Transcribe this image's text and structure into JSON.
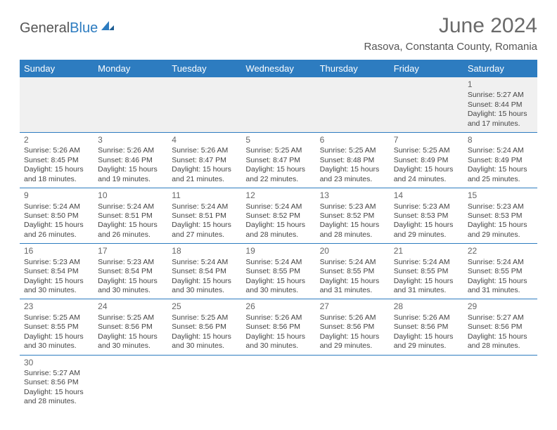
{
  "brand": {
    "general": "General",
    "blue": "Blue"
  },
  "title": "June 2024",
  "location": "Rasova, Constanta County, Romania",
  "header_bg": "#2d7cc0",
  "header_text": "#ffffff",
  "border_color": "#2d7cc0",
  "day_headers": [
    "Sunday",
    "Monday",
    "Tuesday",
    "Wednesday",
    "Thursday",
    "Friday",
    "Saturday"
  ],
  "weeks": [
    [
      null,
      null,
      null,
      null,
      null,
      null,
      {
        "n": "1",
        "sr": "Sunrise: 5:27 AM",
        "ss": "Sunset: 8:44 PM",
        "d1": "Daylight: 15 hours",
        "d2": "and 17 minutes."
      }
    ],
    [
      {
        "n": "2",
        "sr": "Sunrise: 5:26 AM",
        "ss": "Sunset: 8:45 PM",
        "d1": "Daylight: 15 hours",
        "d2": "and 18 minutes."
      },
      {
        "n": "3",
        "sr": "Sunrise: 5:26 AM",
        "ss": "Sunset: 8:46 PM",
        "d1": "Daylight: 15 hours",
        "d2": "and 19 minutes."
      },
      {
        "n": "4",
        "sr": "Sunrise: 5:26 AM",
        "ss": "Sunset: 8:47 PM",
        "d1": "Daylight: 15 hours",
        "d2": "and 21 minutes."
      },
      {
        "n": "5",
        "sr": "Sunrise: 5:25 AM",
        "ss": "Sunset: 8:47 PM",
        "d1": "Daylight: 15 hours",
        "d2": "and 22 minutes."
      },
      {
        "n": "6",
        "sr": "Sunrise: 5:25 AM",
        "ss": "Sunset: 8:48 PM",
        "d1": "Daylight: 15 hours",
        "d2": "and 23 minutes."
      },
      {
        "n": "7",
        "sr": "Sunrise: 5:25 AM",
        "ss": "Sunset: 8:49 PM",
        "d1": "Daylight: 15 hours",
        "d2": "and 24 minutes."
      },
      {
        "n": "8",
        "sr": "Sunrise: 5:24 AM",
        "ss": "Sunset: 8:49 PM",
        "d1": "Daylight: 15 hours",
        "d2": "and 25 minutes."
      }
    ],
    [
      {
        "n": "9",
        "sr": "Sunrise: 5:24 AM",
        "ss": "Sunset: 8:50 PM",
        "d1": "Daylight: 15 hours",
        "d2": "and 26 minutes."
      },
      {
        "n": "10",
        "sr": "Sunrise: 5:24 AM",
        "ss": "Sunset: 8:51 PM",
        "d1": "Daylight: 15 hours",
        "d2": "and 26 minutes."
      },
      {
        "n": "11",
        "sr": "Sunrise: 5:24 AM",
        "ss": "Sunset: 8:51 PM",
        "d1": "Daylight: 15 hours",
        "d2": "and 27 minutes."
      },
      {
        "n": "12",
        "sr": "Sunrise: 5:24 AM",
        "ss": "Sunset: 8:52 PM",
        "d1": "Daylight: 15 hours",
        "d2": "and 28 minutes."
      },
      {
        "n": "13",
        "sr": "Sunrise: 5:23 AM",
        "ss": "Sunset: 8:52 PM",
        "d1": "Daylight: 15 hours",
        "d2": "and 28 minutes."
      },
      {
        "n": "14",
        "sr": "Sunrise: 5:23 AM",
        "ss": "Sunset: 8:53 PM",
        "d1": "Daylight: 15 hours",
        "d2": "and 29 minutes."
      },
      {
        "n": "15",
        "sr": "Sunrise: 5:23 AM",
        "ss": "Sunset: 8:53 PM",
        "d1": "Daylight: 15 hours",
        "d2": "and 29 minutes."
      }
    ],
    [
      {
        "n": "16",
        "sr": "Sunrise: 5:23 AM",
        "ss": "Sunset: 8:54 PM",
        "d1": "Daylight: 15 hours",
        "d2": "and 30 minutes."
      },
      {
        "n": "17",
        "sr": "Sunrise: 5:23 AM",
        "ss": "Sunset: 8:54 PM",
        "d1": "Daylight: 15 hours",
        "d2": "and 30 minutes."
      },
      {
        "n": "18",
        "sr": "Sunrise: 5:24 AM",
        "ss": "Sunset: 8:54 PM",
        "d1": "Daylight: 15 hours",
        "d2": "and 30 minutes."
      },
      {
        "n": "19",
        "sr": "Sunrise: 5:24 AM",
        "ss": "Sunset: 8:55 PM",
        "d1": "Daylight: 15 hours",
        "d2": "and 30 minutes."
      },
      {
        "n": "20",
        "sr": "Sunrise: 5:24 AM",
        "ss": "Sunset: 8:55 PM",
        "d1": "Daylight: 15 hours",
        "d2": "and 31 minutes."
      },
      {
        "n": "21",
        "sr": "Sunrise: 5:24 AM",
        "ss": "Sunset: 8:55 PM",
        "d1": "Daylight: 15 hours",
        "d2": "and 31 minutes."
      },
      {
        "n": "22",
        "sr": "Sunrise: 5:24 AM",
        "ss": "Sunset: 8:55 PM",
        "d1": "Daylight: 15 hours",
        "d2": "and 31 minutes."
      }
    ],
    [
      {
        "n": "23",
        "sr": "Sunrise: 5:25 AM",
        "ss": "Sunset: 8:55 PM",
        "d1": "Daylight: 15 hours",
        "d2": "and 30 minutes."
      },
      {
        "n": "24",
        "sr": "Sunrise: 5:25 AM",
        "ss": "Sunset: 8:56 PM",
        "d1": "Daylight: 15 hours",
        "d2": "and 30 minutes."
      },
      {
        "n": "25",
        "sr": "Sunrise: 5:25 AM",
        "ss": "Sunset: 8:56 PM",
        "d1": "Daylight: 15 hours",
        "d2": "and 30 minutes."
      },
      {
        "n": "26",
        "sr": "Sunrise: 5:26 AM",
        "ss": "Sunset: 8:56 PM",
        "d1": "Daylight: 15 hours",
        "d2": "and 30 minutes."
      },
      {
        "n": "27",
        "sr": "Sunrise: 5:26 AM",
        "ss": "Sunset: 8:56 PM",
        "d1": "Daylight: 15 hours",
        "d2": "and 29 minutes."
      },
      {
        "n": "28",
        "sr": "Sunrise: 5:26 AM",
        "ss": "Sunset: 8:56 PM",
        "d1": "Daylight: 15 hours",
        "d2": "and 29 minutes."
      },
      {
        "n": "29",
        "sr": "Sunrise: 5:27 AM",
        "ss": "Sunset: 8:56 PM",
        "d1": "Daylight: 15 hours",
        "d2": "and 28 minutes."
      }
    ],
    [
      {
        "n": "30",
        "sr": "Sunrise: 5:27 AM",
        "ss": "Sunset: 8:56 PM",
        "d1": "Daylight: 15 hours",
        "d2": "and 28 minutes."
      },
      null,
      null,
      null,
      null,
      null,
      null
    ]
  ]
}
